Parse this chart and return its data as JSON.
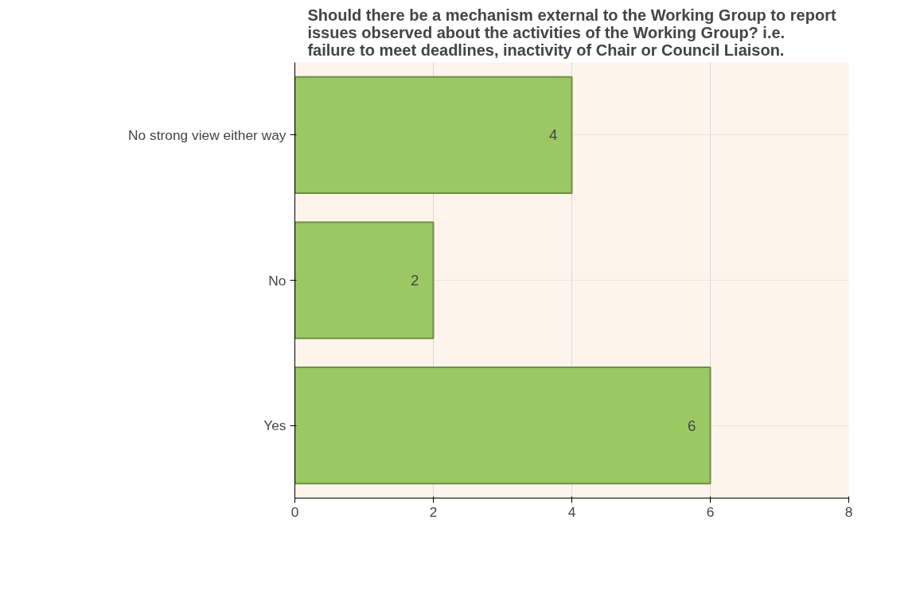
{
  "chart_data": {
    "type": "bar",
    "orientation": "horizontal",
    "title": "Should there be a mechanism external to the Working Group to report issues observed about the activities of the Working Group? i.e. failure to meet deadlines, inactivity of Chair or Council Liaison.",
    "categories": [
      "No strong view either way",
      "No",
      "Yes"
    ],
    "values": [
      4,
      2,
      6
    ],
    "color": "#9bc863",
    "xlim": [
      0,
      8
    ],
    "xticks": [
      0,
      2,
      4,
      6,
      8
    ],
    "grid": true,
    "data_labels": true
  }
}
